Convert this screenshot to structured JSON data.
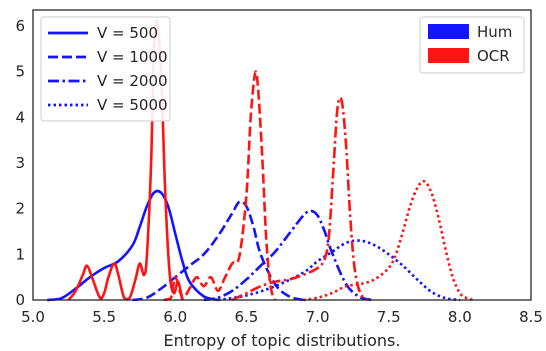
{
  "chart_data": {
    "type": "line",
    "title": "",
    "xlabel": "Entropy of topic distributions.",
    "ylabel": "",
    "xlim": [
      5.0,
      8.5
    ],
    "ylim": [
      0,
      6.35
    ],
    "xticks": [
      5.0,
      5.5,
      6.0,
      6.5,
      7.0,
      7.5,
      8.0,
      8.5
    ],
    "xtick_labels": [
      "5.0",
      "5.5",
      "6.0",
      "6.5",
      "7.0",
      "7.5",
      "8.0",
      "8.5"
    ],
    "yticks": [
      0,
      1,
      2,
      3,
      4,
      5,
      6
    ],
    "ytick_labels": [
      "0",
      "1",
      "2",
      "3",
      "4",
      "5",
      "6"
    ],
    "grid": false,
    "colors": {
      "Hum": "#1414ff",
      "OCR": "#ff1414"
    },
    "legend_style": {
      "position": "top-left",
      "entries": [
        {
          "label": "V = 500",
          "dash": "solid"
        },
        {
          "label": "V = 1000",
          "dash": "dashed"
        },
        {
          "label": "V = 2000",
          "dash": "dashdot"
        },
        {
          "label": "V = 5000",
          "dash": "dotted"
        }
      ]
    },
    "legend_color": {
      "position": "top-right",
      "entries": [
        {
          "label": "Hum",
          "color": "#1414ff"
        },
        {
          "label": "OCR",
          "color": "#ff1414"
        }
      ]
    },
    "series": [
      {
        "group": "Hum",
        "vocab": "V = 500",
        "dash": "solid",
        "color": "#1414ff",
        "x": [
          5.1,
          5.2,
          5.3,
          5.4,
          5.5,
          5.6,
          5.7,
          5.75,
          5.8,
          5.85,
          5.9,
          5.95,
          6.0,
          6.05,
          6.1,
          6.2,
          6.3
        ],
        "y": [
          0.0,
          0.04,
          0.25,
          0.5,
          0.7,
          0.85,
          1.2,
          1.6,
          2.05,
          2.35,
          2.35,
          2.05,
          1.45,
          0.85,
          0.4,
          0.08,
          0.0
        ]
      },
      {
        "group": "Hum",
        "vocab": "V = 1000",
        "dash": "dashed",
        "color": "#1414ff",
        "x": [
          5.7,
          5.8,
          5.9,
          6.0,
          6.1,
          6.2,
          6.3,
          6.4,
          6.45,
          6.5,
          6.55,
          6.6,
          6.7,
          6.8,
          6.9
        ],
        "y": [
          0.0,
          0.05,
          0.25,
          0.5,
          0.75,
          1.0,
          1.4,
          1.9,
          2.15,
          2.05,
          1.6,
          1.0,
          0.35,
          0.08,
          0.0
        ]
      },
      {
        "group": "Hum",
        "vocab": "V = 2000",
        "dash": "dashdot",
        "color": "#1414ff",
        "x": [
          6.2,
          6.3,
          6.4,
          6.5,
          6.6,
          6.7,
          6.8,
          6.9,
          6.95,
          7.0,
          7.05,
          7.1,
          7.2,
          7.3,
          7.4
        ],
        "y": [
          0.0,
          0.05,
          0.2,
          0.45,
          0.75,
          1.05,
          1.45,
          1.85,
          1.95,
          1.85,
          1.5,
          1.05,
          0.35,
          0.06,
          0.0
        ]
      },
      {
        "group": "Hum",
        "vocab": "V = 5000",
        "dash": "dotted",
        "color": "#1414ff",
        "x": [
          6.3,
          6.5,
          6.7,
          6.9,
          7.0,
          7.1,
          7.2,
          7.3,
          7.4,
          7.5,
          7.6,
          7.7,
          7.8,
          7.9,
          8.0
        ],
        "y": [
          0.0,
          0.1,
          0.3,
          0.6,
          0.85,
          1.05,
          1.25,
          1.3,
          1.2,
          1.0,
          0.75,
          0.45,
          0.18,
          0.04,
          0.0
        ]
      },
      {
        "group": "OCR",
        "vocab": "V = 500",
        "dash": "solid",
        "color": "#ff1414",
        "x": [
          5.25,
          5.3,
          5.35,
          5.38,
          5.42,
          5.47,
          5.5,
          5.53,
          5.57,
          5.6,
          5.64,
          5.68,
          5.72,
          5.75,
          5.78,
          5.8,
          5.83,
          5.85,
          5.87,
          5.9,
          5.93,
          5.96,
          5.99,
          6.02,
          6.05
        ],
        "y": [
          0.0,
          0.2,
          0.55,
          0.75,
          0.45,
          0.05,
          0.15,
          0.5,
          0.8,
          0.55,
          0.05,
          0.05,
          0.45,
          0.8,
          0.55,
          0.95,
          3.0,
          5.5,
          6.1,
          5.0,
          2.3,
          0.6,
          0.15,
          0.4,
          0.0
        ]
      },
      {
        "group": "OCR",
        "vocab": "V = 1000",
        "dash": "dashed",
        "color": "#ff1414",
        "x": [
          5.92,
          5.97,
          6.0,
          6.05,
          6.1,
          6.15,
          6.2,
          6.25,
          6.3,
          6.35,
          6.4,
          6.45,
          6.5,
          6.53,
          6.56,
          6.58,
          6.61,
          6.64,
          6.67,
          6.7
        ],
        "y": [
          0.0,
          0.05,
          0.5,
          0.05,
          0.25,
          0.5,
          0.3,
          0.5,
          0.2,
          0.5,
          0.8,
          0.95,
          2.3,
          4.0,
          4.95,
          4.7,
          3.2,
          1.3,
          0.3,
          0.0
        ]
      },
      {
        "group": "OCR",
        "vocab": "V = 2000",
        "dash": "dashdot",
        "color": "#ff1414",
        "x": [
          6.4,
          6.5,
          6.6,
          6.7,
          6.8,
          6.9,
          7.0,
          7.05,
          7.08,
          7.11,
          7.14,
          7.17,
          7.2,
          7.23,
          7.26,
          7.3,
          7.35
        ],
        "y": [
          0.0,
          0.15,
          0.3,
          0.4,
          0.45,
          0.55,
          0.7,
          0.9,
          1.4,
          2.8,
          4.2,
          4.35,
          3.4,
          1.8,
          0.7,
          0.15,
          0.0
        ]
      },
      {
        "group": "OCR",
        "vocab": "V = 5000",
        "dash": "dotted",
        "color": "#ff1414",
        "x": [
          6.9,
          7.0,
          7.1,
          7.2,
          7.3,
          7.4,
          7.5,
          7.55,
          7.6,
          7.65,
          7.7,
          7.75,
          7.8,
          7.85,
          7.9,
          7.95,
          8.0,
          8.05,
          8.1
        ],
        "y": [
          0.0,
          0.05,
          0.15,
          0.3,
          0.35,
          0.45,
          0.7,
          1.0,
          1.5,
          2.05,
          2.45,
          2.6,
          2.35,
          1.8,
          1.1,
          0.5,
          0.15,
          0.04,
          0.0
        ]
      }
    ]
  }
}
